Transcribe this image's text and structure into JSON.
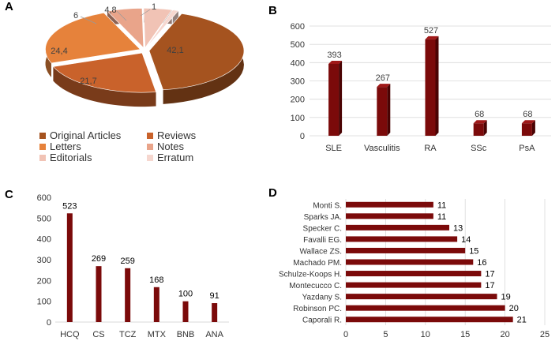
{
  "panel_labels": {
    "a": "A",
    "b": "B",
    "c": "C",
    "d": "D"
  },
  "colors": {
    "bar": "#7b0a0a",
    "bar_side": "#4a0303",
    "bar_top": "#a01818",
    "axis_text": "#333333",
    "value_text": "#404040",
    "grid": "#d9d9d9"
  },
  "chart_data": [
    {
      "id": "A",
      "type": "pie",
      "categories": [
        "Original Articles",
        "Reviews",
        "Letters",
        "Notes",
        "Editorials",
        "Erratum"
      ],
      "values": [
        42.1,
        21.7,
        24.4,
        6,
        4.8,
        1
      ],
      "value_labels": [
        "42,1",
        "21,7",
        "24,4",
        "6",
        "4,8",
        "1"
      ],
      "colors": [
        "#a5531f",
        "#c9622b",
        "#e6823b",
        "#e9a48a",
        "#f1c3b5",
        "#f6d7cf"
      ],
      "legend_position": "bottom"
    },
    {
      "id": "B",
      "type": "bar",
      "categories": [
        "SLE",
        "Vasculitis",
        "RA",
        "SSc",
        "PsA"
      ],
      "values": [
        393,
        267,
        527,
        68,
        68
      ],
      "ylim": [
        0,
        600
      ],
      "yticks": [
        0,
        100,
        200,
        300,
        400,
        500,
        600
      ],
      "grid": true
    },
    {
      "id": "C",
      "type": "bar",
      "categories": [
        "HCQ",
        "CS",
        "TCZ",
        "MTX",
        "BNB",
        "ANA"
      ],
      "values": [
        523,
        269,
        259,
        168,
        100,
        91
      ],
      "ylim": [
        0,
        600
      ],
      "yticks": [
        0,
        100,
        200,
        300,
        400,
        500,
        600
      ],
      "grid": false
    },
    {
      "id": "D",
      "type": "bar",
      "orientation": "horizontal",
      "categories": [
        "Monti S.",
        "Sparks JA.",
        "Specker C.",
        "Favalli EG.",
        "Wallace ZS.",
        "Machado PM.",
        "Schulze-Koops H.",
        "Montecucco C.",
        "Yazdany S.",
        "Robinson PC.",
        "Caporali R."
      ],
      "values": [
        11,
        11,
        13,
        14,
        15,
        16,
        17,
        17,
        19,
        20,
        21
      ],
      "xlim": [
        0,
        25
      ],
      "xticks": [
        0,
        5,
        10,
        15,
        20,
        25
      ],
      "grid": true
    }
  ]
}
